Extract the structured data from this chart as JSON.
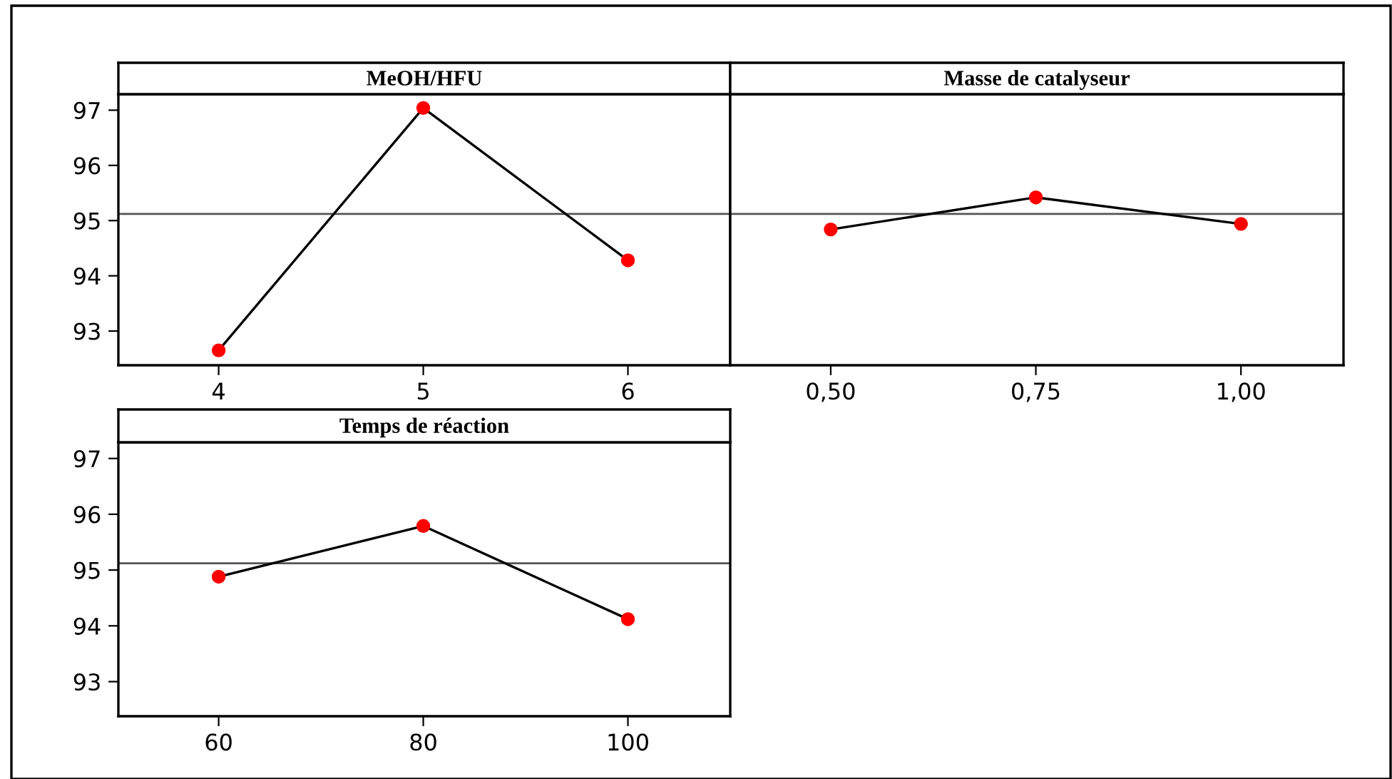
{
  "chart_data": [
    {
      "type": "line",
      "title": "MeOH/HFU",
      "categories": [
        "4",
        "5",
        "6"
      ],
      "series": [
        {
          "color": "#000000",
          "colors": [
            "#ff0000",
            "#ff0000",
            "#ff0000"
          ],
          "values": [
            92.65,
            97.04,
            94.28
          ]
        }
      ],
      "ylim": [
        92.38,
        97.29
      ],
      "yticks": [
        93,
        94,
        95,
        96,
        97
      ],
      "ref_lines": [
        {
          "axis": "y",
          "value": 95.12,
          "color": "#555555"
        }
      ],
      "marker": "circle",
      "grid": false
    },
    {
      "type": "line",
      "title": "Masse de catalyseur",
      "categories": [
        "0,50",
        "0,75",
        "1,00"
      ],
      "series": [
        {
          "color": "#000000",
          "colors": [
            "#ff0000",
            "#ff0000",
            "#ff0000"
          ],
          "values": [
            94.84,
            95.42,
            94.94
          ]
        }
      ],
      "ylim": [
        92.38,
        97.29
      ],
      "yticks": [
        93,
        94,
        95,
        96,
        97
      ],
      "tick_labels": "x",
      "ref_lines": [
        {
          "axis": "y",
          "value": 95.12,
          "color": "#555555"
        }
      ],
      "marker": "circle",
      "grid": false
    },
    {
      "type": "line",
      "title": "Temps de réaction",
      "categories": [
        "60",
        "80",
        "100"
      ],
      "series": [
        {
          "color": "#000000",
          "colors": [
            "#ff0000",
            "#ff0000",
            "#ff0000"
          ],
          "values": [
            94.88,
            95.79,
            94.12
          ]
        }
      ],
      "ylim": [
        92.38,
        97.29
      ],
      "yticks": [
        93,
        94,
        95,
        96,
        97
      ],
      "ref_lines": [
        {
          "axis": "y",
          "value": 95.12,
          "color": "#555555"
        }
      ],
      "marker": "circle",
      "grid": false
    }
  ]
}
